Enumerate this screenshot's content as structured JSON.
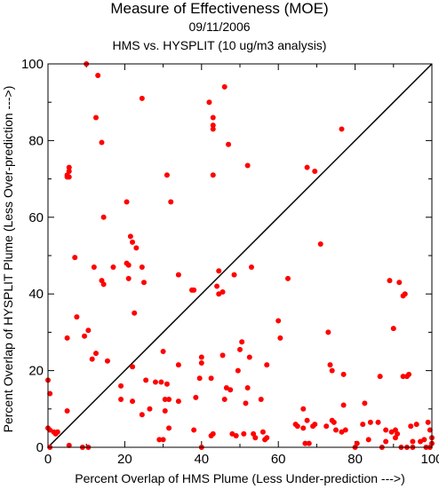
{
  "chart_data": {
    "type": "scatter",
    "title": "Measure of Effectiveness (MOE)",
    "subtitle": "09/11/2006",
    "subtitle2": "HMS vs. HYSPLIT  (10 ug/m3 analysis)",
    "xlabel": "Percent Overlap of HMS Plume (Less Under-prediction --->)",
    "ylabel": "Percent Overlap of HYSPLIT Plume (Less Over-prediction --->)",
    "xlim": [
      0,
      100
    ],
    "ylim": [
      0,
      100
    ],
    "x_ticks": [
      "0",
      "20",
      "40",
      "60",
      "80",
      "100"
    ],
    "y_ticks": [
      "0",
      "20",
      "40",
      "60",
      "80",
      "100"
    ],
    "reference_line": [
      [
        0,
        0
      ],
      [
        100,
        100
      ]
    ],
    "marker_color": "#ff0000",
    "line_color": "#000000",
    "points": [
      [
        10,
        100
      ],
      [
        13,
        97
      ],
      [
        24.5,
        91
      ],
      [
        42,
        90
      ],
      [
        46,
        94
      ],
      [
        12.5,
        86
      ],
      [
        43,
        86
      ],
      [
        43,
        84
      ],
      [
        43,
        83
      ],
      [
        47,
        79
      ],
      [
        14,
        79.5
      ],
      [
        76.5,
        83
      ],
      [
        31,
        71
      ],
      [
        43,
        71
      ],
      [
        5.5,
        73
      ],
      [
        5.5,
        72
      ],
      [
        5,
        71
      ],
      [
        5,
        70.5
      ],
      [
        5.5,
        70.5
      ],
      [
        67.5,
        73
      ],
      [
        69.5,
        72
      ],
      [
        52,
        73.5
      ],
      [
        32,
        64
      ],
      [
        20.5,
        64
      ],
      [
        14.5,
        60
      ],
      [
        21.5,
        55
      ],
      [
        22,
        53.5
      ],
      [
        23,
        52
      ],
      [
        7,
        49.5
      ],
      [
        12,
        47
      ],
      [
        17,
        47
      ],
      [
        20.5,
        48
      ],
      [
        21,
        47.5
      ],
      [
        24.5,
        47
      ],
      [
        14,
        43.5
      ],
      [
        14.5,
        42.5
      ],
      [
        21,
        44
      ],
      [
        25,
        43
      ],
      [
        34,
        45
      ],
      [
        44.5,
        46
      ],
      [
        44,
        42
      ],
      [
        44.5,
        40
      ],
      [
        45.5,
        40.5
      ],
      [
        48.5,
        45
      ],
      [
        53,
        47
      ],
      [
        62.5,
        44
      ],
      [
        71,
        53
      ],
      [
        89,
        43.5
      ],
      [
        91.5,
        43
      ],
      [
        93,
        40
      ],
      [
        92.5,
        39.5
      ],
      [
        7.5,
        34
      ],
      [
        10.5,
        30.5
      ],
      [
        9.5,
        29
      ],
      [
        5,
        28.5
      ],
      [
        22.5,
        35
      ],
      [
        38,
        41
      ],
      [
        37.5,
        41
      ],
      [
        60,
        33
      ],
      [
        60.5,
        28.5
      ],
      [
        73,
        30
      ],
      [
        90,
        31
      ],
      [
        12.5,
        24.5
      ],
      [
        11.5,
        23
      ],
      [
        15.5,
        22.5
      ],
      [
        30,
        25
      ],
      [
        34,
        21.5
      ],
      [
        40,
        23.5
      ],
      [
        40,
        22
      ],
      [
        45.5,
        24
      ],
      [
        50.5,
        27.5
      ],
      [
        50,
        25.5
      ],
      [
        52.5,
        23.5
      ],
      [
        57,
        21.5
      ],
      [
        22,
        21
      ],
      [
        42.5,
        18
      ],
      [
        49.5,
        20
      ],
      [
        73.5,
        21.5
      ],
      [
        74,
        20
      ],
      [
        77,
        11
      ],
      [
        77,
        19
      ],
      [
        86.5,
        18.5
      ],
      [
        92.5,
        18.5
      ],
      [
        94,
        19
      ],
      [
        93.5,
        18.5
      ],
      [
        0,
        17.5
      ],
      [
        0.5,
        14
      ],
      [
        19,
        16
      ],
      [
        19,
        12.5
      ],
      [
        22,
        12
      ],
      [
        24.5,
        8.5
      ],
      [
        25.5,
        17.5
      ],
      [
        28,
        17
      ],
      [
        29.5,
        17
      ],
      [
        31,
        16.5
      ],
      [
        30.5,
        12.5
      ],
      [
        34,
        12
      ],
      [
        39.5,
        18
      ],
      [
        38.5,
        13
      ],
      [
        46.5,
        15.5
      ],
      [
        46,
        12.5
      ],
      [
        47.5,
        15
      ],
      [
        52,
        15.5
      ],
      [
        51.5,
        11.5
      ],
      [
        55.5,
        12.5
      ],
      [
        5,
        9.5
      ],
      [
        26.5,
        10
      ],
      [
        30.5,
        9.5
      ],
      [
        31.5,
        12.5
      ],
      [
        66.5,
        10
      ],
      [
        67.5,
        7
      ],
      [
        69,
        5.5
      ],
      [
        69.5,
        6
      ],
      [
        72.5,
        5.5
      ],
      [
        74,
        7
      ],
      [
        74.5,
        6.5
      ],
      [
        75,
        4.5
      ],
      [
        76.5,
        4
      ],
      [
        77.5,
        4.5
      ],
      [
        82,
        6
      ],
      [
        82.5,
        11.5
      ],
      [
        84,
        6.5
      ],
      [
        86,
        6.5
      ],
      [
        88,
        4.5
      ],
      [
        89.5,
        4
      ],
      [
        90.5,
        4.5
      ],
      [
        91,
        3.5
      ],
      [
        94.5,
        5.5
      ],
      [
        96,
        6
      ],
      [
        95,
        1.5
      ],
      [
        0.5,
        4.5
      ],
      [
        0,
        5
      ],
      [
        1.5,
        4
      ],
      [
        2,
        3.5
      ],
      [
        2.5,
        4
      ],
      [
        0.5,
        0
      ],
      [
        5.5,
        0.5
      ],
      [
        9,
        0
      ],
      [
        10.5,
        0
      ],
      [
        29,
        2
      ],
      [
        30,
        2
      ],
      [
        31.5,
        5
      ],
      [
        38,
        4.5
      ],
      [
        40,
        0
      ],
      [
        42.5,
        3
      ],
      [
        43,
        3.5
      ],
      [
        48,
        3.5
      ],
      [
        49,
        3
      ],
      [
        51,
        3.5
      ],
      [
        53.5,
        3.5
      ],
      [
        54,
        2.5
      ],
      [
        56,
        4
      ],
      [
        56.5,
        2
      ],
      [
        57,
        2.5
      ],
      [
        64.5,
        6
      ],
      [
        65,
        5.5
      ],
      [
        66.5,
        5
      ],
      [
        67,
        1
      ],
      [
        68,
        1
      ],
      [
        80,
        0
      ],
      [
        80.5,
        1
      ],
      [
        83.5,
        2
      ],
      [
        87,
        0
      ],
      [
        88,
        1.5
      ],
      [
        90.5,
        2.5
      ],
      [
        92,
        0
      ],
      [
        93.5,
        0
      ],
      [
        95,
        0
      ],
      [
        97,
        1.5
      ],
      [
        98,
        2
      ],
      [
        99,
        6.5
      ],
      [
        99.5,
        4.5
      ],
      [
        100,
        2.5
      ],
      [
        100,
        1
      ],
      [
        98.5,
        0
      ],
      [
        99.5,
        0
      ]
    ]
  }
}
